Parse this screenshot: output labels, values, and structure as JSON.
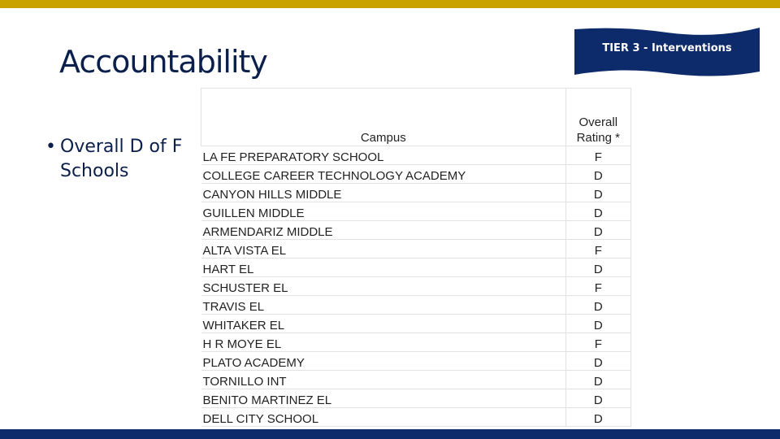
{
  "slide": {
    "title": "Accountability",
    "bullet": "Overall D of F Schools",
    "banner": "TIER 3 - Interventions"
  },
  "table": {
    "headers": {
      "campus": "Campus",
      "rating": "Overall Rating *"
    },
    "rows": [
      {
        "campus": "LA FE PREPARATORY SCHOOL",
        "rating": "F"
      },
      {
        "campus": "COLLEGE CAREER TECHNOLOGY ACADEMY",
        "rating": "D"
      },
      {
        "campus": "CANYON HILLS MIDDLE",
        "rating": "D"
      },
      {
        "campus": "GUILLEN MIDDLE",
        "rating": "D"
      },
      {
        "campus": "ARMENDARIZ MIDDLE",
        "rating": "D"
      },
      {
        "campus": "ALTA VISTA EL",
        "rating": "F"
      },
      {
        "campus": "HART EL",
        "rating": "D"
      },
      {
        "campus": "SCHUSTER EL",
        "rating": "F"
      },
      {
        "campus": "TRAVIS EL",
        "rating": "D"
      },
      {
        "campus": "WHITAKER EL",
        "rating": "D"
      },
      {
        "campus": "H R MOYE EL",
        "rating": "F"
      },
      {
        "campus": "PLATO ACADEMY",
        "rating": "D"
      },
      {
        "campus": "TORNILLO INT",
        "rating": "D"
      },
      {
        "campus": "BENITO MARTINEZ EL",
        "rating": "D"
      },
      {
        "campus": "DELL CITY SCHOOL",
        "rating": "D"
      }
    ]
  },
  "colors": {
    "accent_gold": "#c9a400",
    "navy": "#0d2b6b",
    "title": "#0b1f4d"
  }
}
